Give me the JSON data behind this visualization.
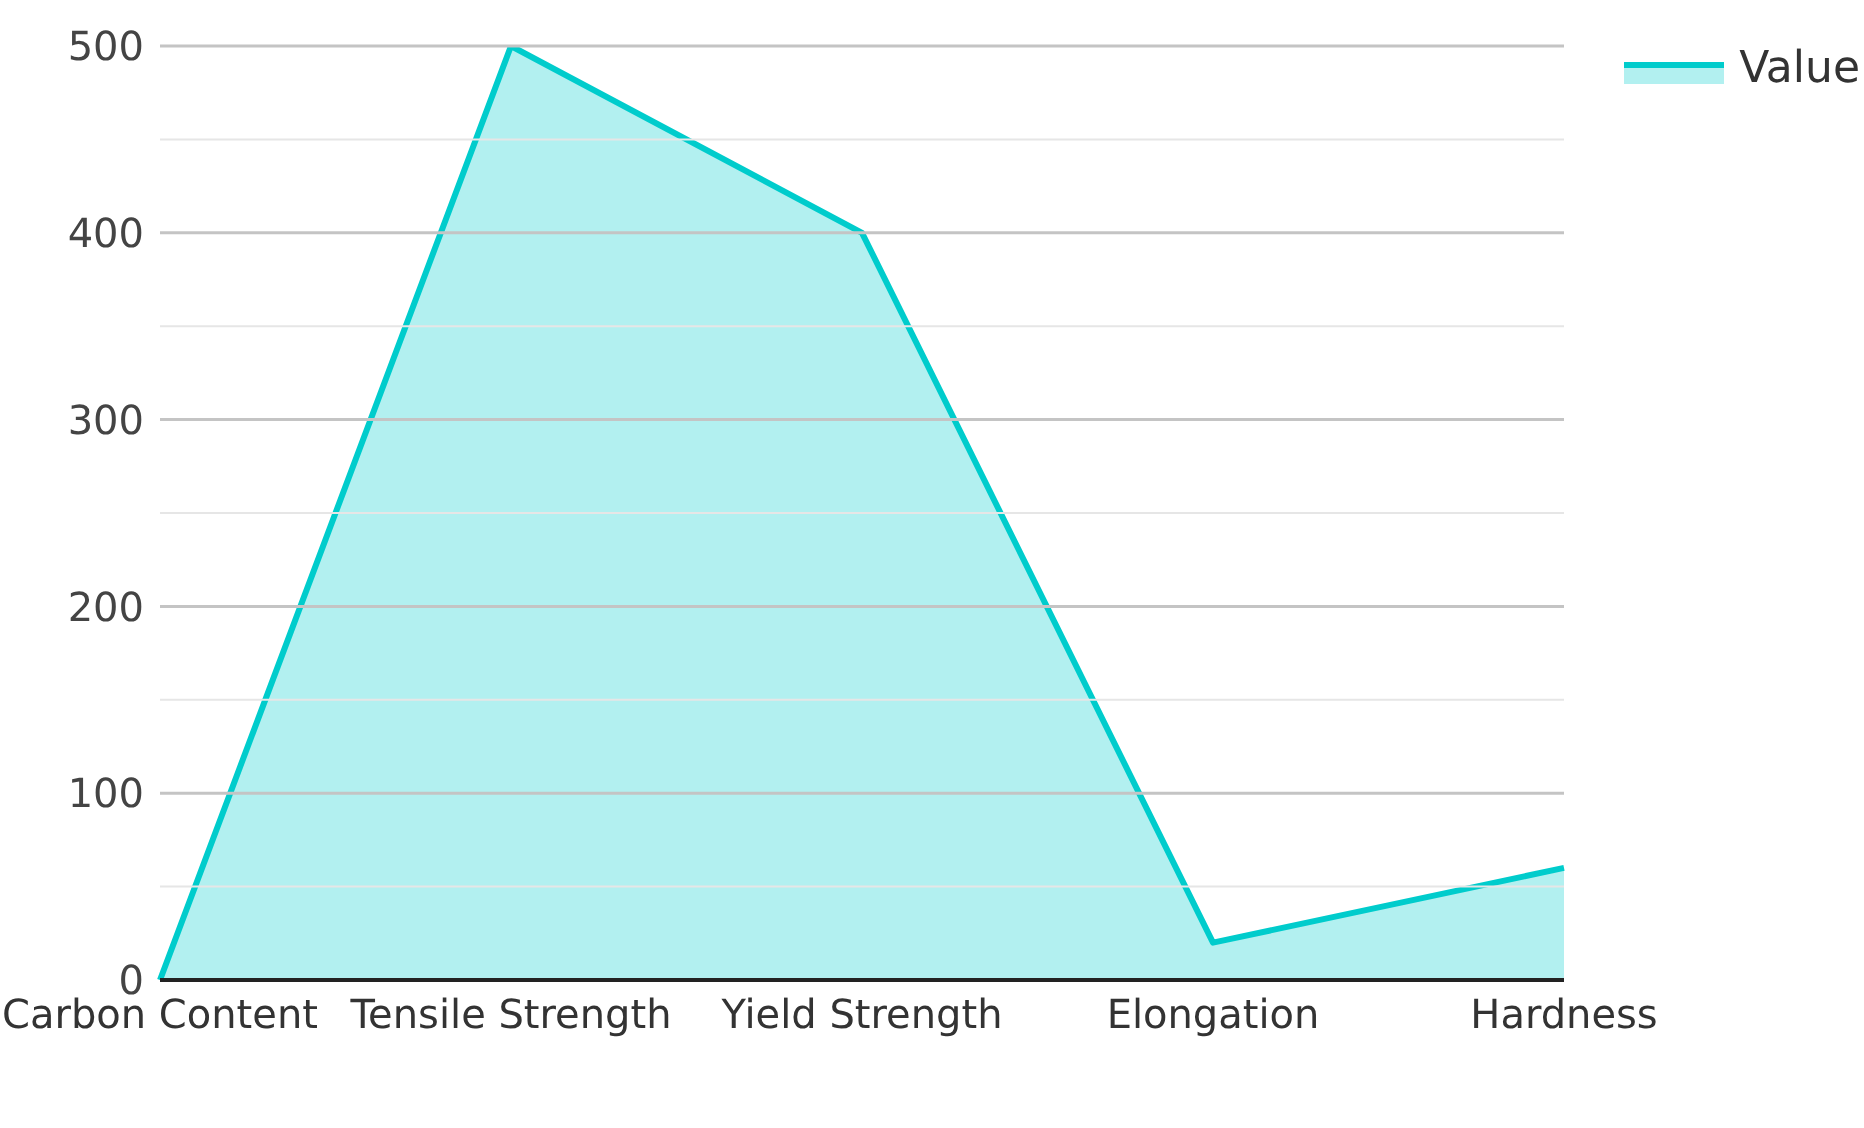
{
  "chart_data": {
    "type": "area",
    "categories": [
      "Carbon Content",
      "Tensile Strength",
      "Yield Strength",
      "Elongation",
      "Hardness"
    ],
    "series": [
      {
        "name": "Value",
        "color": "#00cccc",
        "values": [
          0,
          500,
          400,
          20,
          60
        ]
      }
    ],
    "ylim": [
      0,
      500
    ],
    "yticks": [
      0,
      {
        "value": 50,
        "label": null
      },
      100,
      {
        "value": 150,
        "label": null
      },
      200,
      {
        "value": 250,
        "label": null
      },
      300,
      {
        "value": 350,
        "label": null
      },
      400,
      {
        "value": 450,
        "label": null
      },
      500
    ],
    "grid": "y",
    "legend": "top right"
  }
}
